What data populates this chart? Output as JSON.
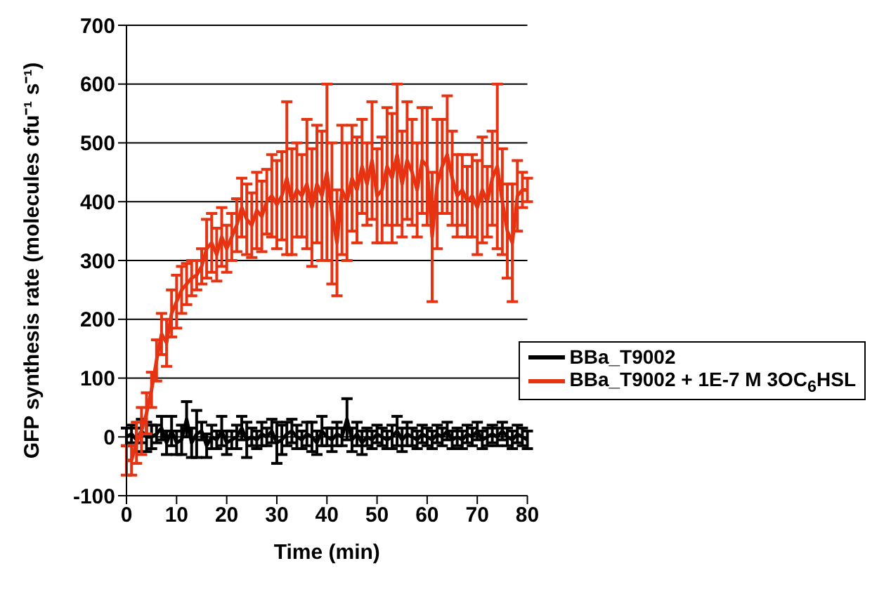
{
  "chart_data": {
    "type": "line",
    "xlabel": "Time (min)",
    "ylabel": "GFP synthesis rate (molecules cfu⁻¹ s⁻¹)",
    "x": [
      0,
      1,
      2,
      3,
      4,
      5,
      6,
      7,
      8,
      9,
      10,
      11,
      12,
      13,
      14,
      15,
      16,
      17,
      18,
      19,
      20,
      21,
      22,
      23,
      24,
      25,
      26,
      27,
      28,
      29,
      30,
      31,
      32,
      33,
      34,
      35,
      36,
      37,
      38,
      39,
      40,
      41,
      42,
      43,
      44,
      45,
      46,
      47,
      48,
      49,
      50,
      51,
      52,
      53,
      54,
      55,
      56,
      57,
      58,
      59,
      60,
      61,
      62,
      63,
      64,
      65,
      66,
      67,
      68,
      69,
      70,
      71,
      72,
      73,
      74,
      75,
      76,
      77,
      78,
      79,
      80
    ],
    "xlim": [
      0,
      80
    ],
    "xticks": [
      0,
      10,
      20,
      30,
      40,
      50,
      60,
      70,
      80
    ],
    "ylim": [
      -100,
      700
    ],
    "yticks": [
      -100,
      0,
      100,
      200,
      300,
      400,
      500,
      600,
      700
    ],
    "grid": "y",
    "legend": "right",
    "marker": "none",
    "line_style": "solid",
    "series": [
      {
        "name": "BBa_T9002",
        "color": "#000000",
        "values": [
          0,
          5,
          -5,
          10,
          0,
          0,
          5,
          15,
          -10,
          10,
          -10,
          -5,
          30,
          -10,
          5,
          10,
          -15,
          0,
          -5,
          10,
          -10,
          -5,
          0,
          15,
          -5,
          0,
          -5,
          5,
          0,
          10,
          -10,
          -5,
          5,
          10,
          0,
          -5,
          5,
          0,
          -10,
          10,
          0,
          -5,
          5,
          0,
          30,
          -5,
          5,
          -10,
          0,
          -5,
          5,
          0,
          -5,
          0,
          10,
          -5,
          5,
          0,
          -5,
          5,
          0,
          -5,
          5,
          0,
          10,
          -5,
          0,
          -5,
          5,
          0,
          10,
          -5,
          0,
          5,
          0,
          10,
          0,
          -5,
          5,
          0,
          -5
        ],
        "errors": [
          15,
          15,
          20,
          20,
          25,
          20,
          15,
          20,
          20,
          25,
          20,
          25,
          30,
          25,
          40,
          15,
          20,
          20,
          15,
          25,
          20,
          15,
          20,
          20,
          30,
          15,
          15,
          20,
          15,
          20,
          35,
          25,
          20,
          20,
          20,
          15,
          20,
          25,
          20,
          25,
          15,
          20,
          20,
          15,
          35,
          20,
          20,
          20,
          15,
          15,
          15,
          15,
          15,
          20,
          25,
          20,
          20,
          15,
          15,
          15,
          15,
          15,
          15,
          15,
          15,
          15,
          15,
          15,
          15,
          15,
          15,
          15,
          15,
          15,
          15,
          15,
          15,
          15,
          15,
          15,
          15
        ]
      },
      {
        "name": "BBa_T9002 + 1E-7 M 3OC$_{6}$HSL",
        "color": "#e63312",
        "values": [
          -40,
          -40,
          -10,
          10,
          40,
          80,
          130,
          175,
          160,
          210,
          230,
          250,
          260,
          270,
          275,
          290,
          320,
          330,
          310,
          340,
          320,
          340,
          360,
          390,
          370,
          360,
          385,
          375,
          400,
          410,
          395,
          410,
          440,
          400,
          420,
          410,
          430,
          390,
          430,
          410,
          450,
          380,
          330,
          420,
          400,
          440,
          420,
          460,
          430,
          470,
          410,
          420,
          460,
          440,
          480,
          430,
          470,
          450,
          420,
          470,
          460,
          340,
          430,
          460,
          480,
          440,
          410,
          420,
          400,
          410,
          390,
          420,
          400,
          440,
          460,
          400,
          350,
          330,
          410,
          420,
          420
        ],
        "errors": [
          25,
          25,
          35,
          40,
          35,
          30,
          35,
          35,
          40,
          40,
          45,
          40,
          35,
          30,
          25,
          30,
          50,
          50,
          45,
          50,
          40,
          40,
          45,
          50,
          60,
          55,
          65,
          60,
          55,
          70,
          75,
          75,
          130,
          90,
          80,
          70,
          110,
          100,
          100,
          110,
          150,
          120,
          90,
          110,
          100,
          90,
          90,
          80,
          70,
          100,
          80,
          90,
          100,
          110,
          120,
          90,
          100,
          90,
          80,
          90,
          100,
          110,
          110,
          80,
          100,
          80,
          70,
          60,
          60,
          70,
          80,
          90,
          60,
          80,
          140,
          90,
          80,
          100,
          60,
          30,
          20
        ]
      }
    ]
  }
}
